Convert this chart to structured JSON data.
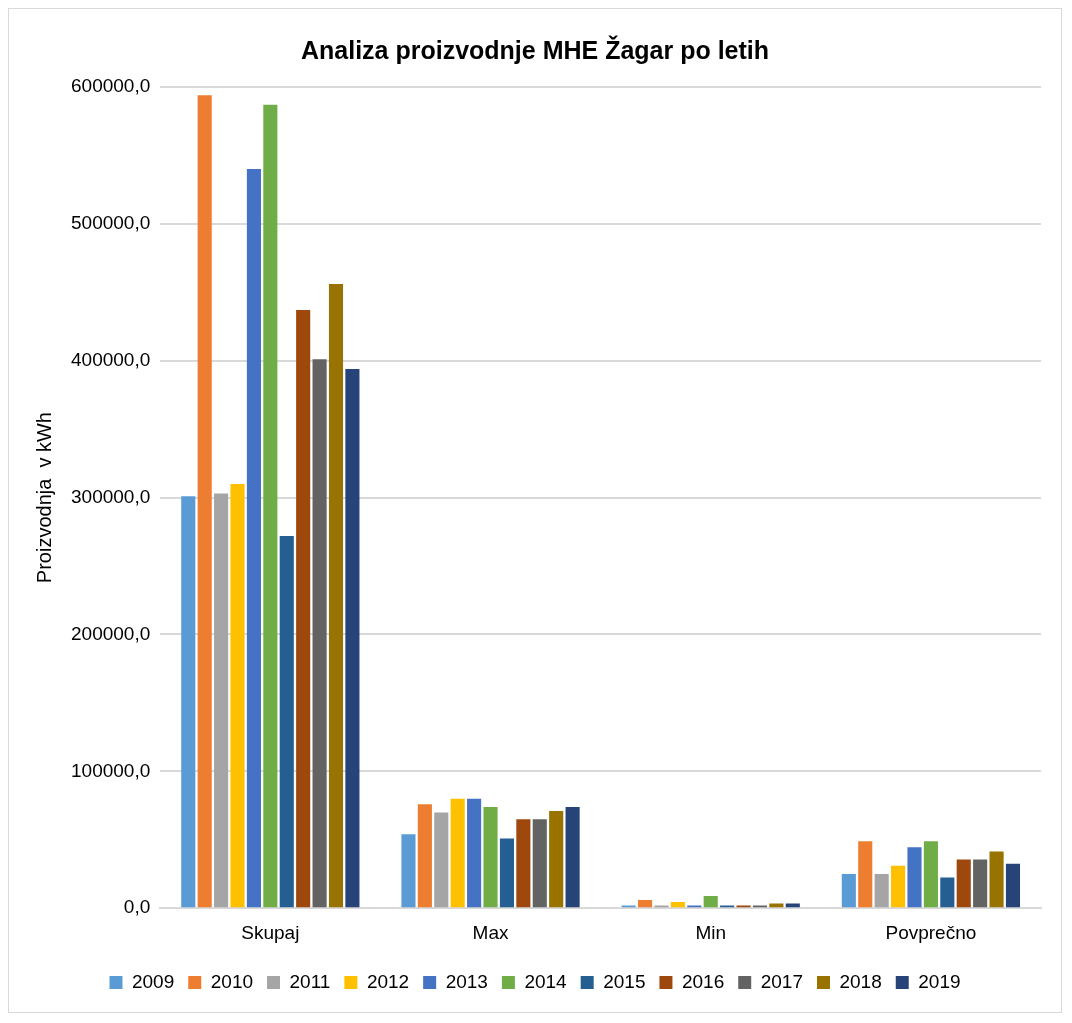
{
  "chart_data": {
    "type": "bar",
    "title": "Analiza proizvodnje MHE Žagar po letih",
    "ylabel": "Proizvodnja  v kWh",
    "categories": [
      "Skupaj",
      "Max",
      "Min",
      "Povprečno"
    ],
    "series": [
      {
        "name": "2009",
        "color": "#5b9bd5",
        "values": [
          301000,
          54000,
          2000,
          25000
        ]
      },
      {
        "name": "2010",
        "color": "#ed7d31",
        "values": [
          594000,
          76000,
          6000,
          49000
        ]
      },
      {
        "name": "2011",
        "color": "#a5a5a5",
        "values": [
          303000,
          70000,
          2000,
          25000
        ]
      },
      {
        "name": "2012",
        "color": "#ffc000",
        "values": [
          310000,
          80000,
          4500,
          31000
        ]
      },
      {
        "name": "2013",
        "color": "#4472c4",
        "values": [
          540000,
          80000,
          2000,
          44500
        ]
      },
      {
        "name": "2014",
        "color": "#70ad47",
        "values": [
          587000,
          74000,
          9000,
          49000
        ]
      },
      {
        "name": "2015",
        "color": "#255e91",
        "values": [
          272000,
          51000,
          2000,
          22500
        ]
      },
      {
        "name": "2016",
        "color": "#9e480e",
        "values": [
          437000,
          65000,
          2000,
          35500
        ]
      },
      {
        "name": "2017",
        "color": "#636363",
        "values": [
          401000,
          65000,
          2000,
          35500
        ]
      },
      {
        "name": "2018",
        "color": "#997300",
        "values": [
          456000,
          71000,
          3500,
          41500
        ]
      },
      {
        "name": "2019",
        "color": "#264478",
        "values": [
          394000,
          74000,
          3500,
          32500
        ]
      }
    ],
    "ylim": [
      0,
      600000
    ],
    "yticks": [
      {
        "value": 0,
        "label": "0,0"
      },
      {
        "value": 100000,
        "label": "100000,0"
      },
      {
        "value": 200000,
        "label": "200000,0"
      },
      {
        "value": 300000,
        "label": "300000,0"
      },
      {
        "value": 400000,
        "label": "400000,0"
      },
      {
        "value": 500000,
        "label": "500000,0"
      },
      {
        "value": 600000,
        "label": "600000,0"
      }
    ],
    "grid": "y",
    "legend": "bottom"
  }
}
